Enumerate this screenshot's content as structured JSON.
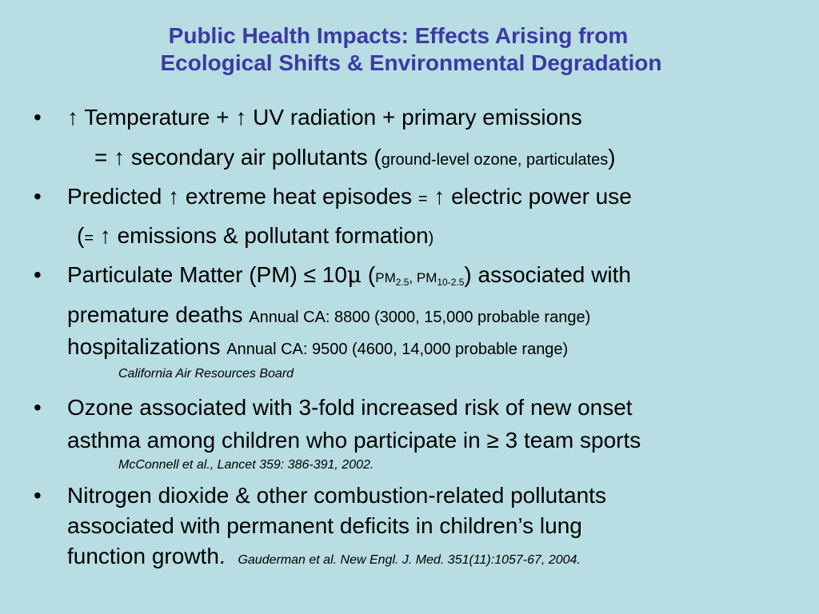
{
  "slide": {
    "title_line1": "Public Health Impacts: Effects Arising from",
    "title_line2": "Ecological Shifts & Environmental Degradation",
    "bullet_char": "•",
    "b1": {
      "line1": "↑ Temperature + ↑ UV radiation + primary emissions",
      "line2_main": "= ↑ secondary air pollutants (",
      "line2_small": "ground-level ozone, particulates",
      "line2_close": ")"
    },
    "b2": {
      "line1_a": "Predicted ↑ extreme heat episodes ",
      "line1_eq": "=",
      "line1_b": " ↑ electric power use",
      "line2_open": "(",
      "line2_eq": "=",
      "line2_main": " ↑ emissions & pollutant formation",
      "line2_close": ")"
    },
    "b3": {
      "line1_a": "Particulate Matter (PM) ≤ 10",
      "mu": "μ",
      "line1_open": " (",
      "pm1": "PM",
      "pm1_sub": "2.5",
      "comma": ", ",
      "pm2": "PM",
      "pm2_sub": "10-2.5",
      "line1_b": ") associated with",
      "line2_main": "premature deaths ",
      "line2_small": "Annual CA: 8800 (3000, 15,000 probable range)",
      "line3_main": "hospitalizations ",
      "line3_small": "Annual CA: 9500 (4600, 14,000 probable range)",
      "cite": "California Air Resources Board"
    },
    "b4": {
      "line1": "Ozone associated with 3-fold increased risk of new onset",
      "line2": "asthma among children who participate in ≥ 3 team sports",
      "cite": "McConnell et al., Lancet 359: 386-391, 2002."
    },
    "b5": {
      "line1": "Nitrogen dioxide & other combustion-related pollutants",
      "line2": "associated with permanent deficits in children’s lung",
      "line3_main": "function growth.",
      "line3_cite": "Gauderman et al. New Engl. J. Med. 351(11):1057-67, 2004."
    }
  }
}
